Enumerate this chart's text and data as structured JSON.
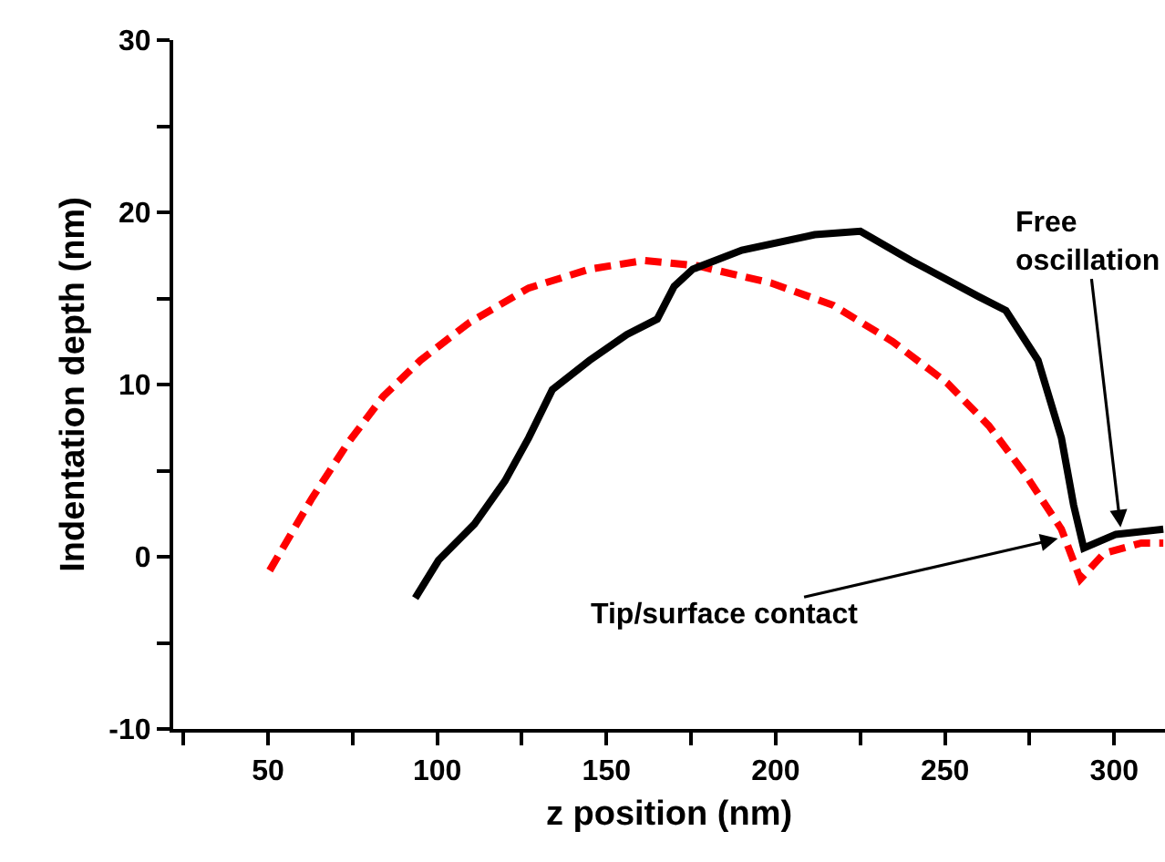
{
  "chart_data": {
    "type": "line",
    "xlabel": "z position (nm)",
    "ylabel": "Indentation depth (nm)",
    "xlim": [
      22,
      315
    ],
    "ylim": [
      -10,
      30
    ],
    "xticks": [
      {
        "value": 25,
        "label": null
      },
      50,
      {
        "value": 75,
        "label": null
      },
      100,
      {
        "value": 125,
        "label": null
      },
      150,
      {
        "value": 175,
        "label": null
      },
      200,
      {
        "value": 225,
        "label": null
      },
      250,
      {
        "value": 275,
        "label": null
      },
      300
    ],
    "yticks": [
      -10,
      {
        "value": -5,
        "label": null
      },
      0,
      {
        "value": 5,
        "label": null
      },
      10,
      {
        "value": 15,
        "label": null
      },
      20,
      {
        "value": 25,
        "label": null
      },
      30
    ],
    "grid": false,
    "marker": "none",
    "series": [
      {
        "color": "#ff0000",
        "line_style": "dashed",
        "x": [
          50.5,
          63,
          73.6,
          84,
          95,
          109.5,
          127,
          145,
          161,
          177,
          181,
          198.6,
          217,
          234.5,
          250.6,
          263,
          273.7,
          284.4,
          290,
          297,
          308,
          314.5
        ],
        "values": [
          -0.8,
          3.4,
          6.6,
          9.3,
          11.4,
          13.6,
          15.6,
          16.7,
          17.2,
          16.9,
          16.7,
          15.9,
          14.6,
          12.5,
          10.1,
          7.6,
          4.8,
          1.6,
          -1.3,
          0.2,
          0.8,
          0.8
        ]
      },
      {
        "color": "#000000",
        "line_style": "solid",
        "x": [
          93.5,
          100.4,
          111,
          120,
          127,
          134,
          145,
          156,
          165,
          170,
          175.5,
          190,
          211.5,
          225,
          240,
          260,
          268,
          277.5,
          284.4,
          288,
          291,
          300.5,
          314.5
        ],
        "values": [
          -2.4,
          -0.2,
          1.9,
          4.4,
          6.9,
          9.7,
          11.4,
          12.9,
          13.8,
          15.7,
          16.7,
          17.8,
          18.7,
          18.9,
          17.2,
          15.1,
          14.3,
          11.4,
          6.9,
          3.0,
          0.5,
          1.3,
          1.6
        ]
      }
    ],
    "annotations": [
      {
        "text": "Tip/surface contact",
        "x": 284.4,
        "y": 1.1
      },
      {
        "text": "Free oscillation",
        "x": 302,
        "y": 1.5
      }
    ]
  }
}
